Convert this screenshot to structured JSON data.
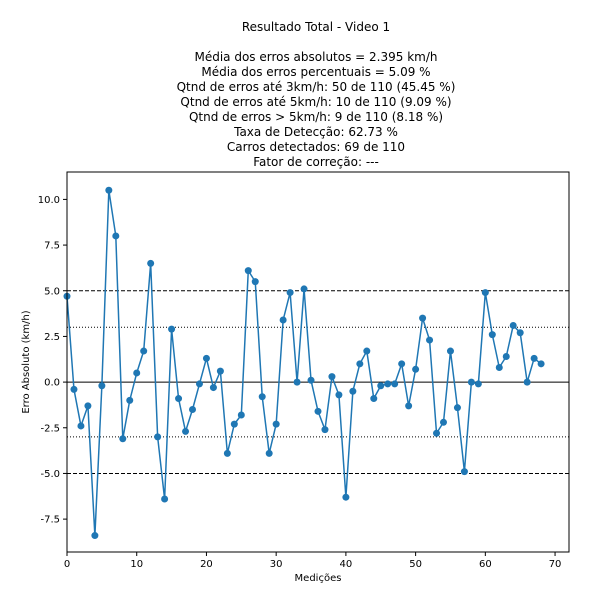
{
  "chart_data": {
    "type": "line",
    "title_lines": [
      "Resultado Total - Video 1",
      "",
      "Média dos erros absolutos =  2.395 km/h",
      "Média dos erros percentuais = 5.09 %",
      "Qtnd de erros até 3km/h: 50 de 110 (45.45 %)",
      "Qtnd de erros até 5km/h: 10 de 110 (9.09 %)",
      "Qtnd de erros > 5km/h: 9 de 110 (8.18 %)",
      "Taxa de Detecção: 62.73 %",
      "Carros detectados: 69 de 110",
      "Fator de correção: ---"
    ],
    "xlabel": "Medições",
    "ylabel": "Erro Absoluto (km/h)",
    "xlim": [
      0,
      72
    ],
    "ylim": [
      -9.3,
      11.5
    ],
    "xticks": [
      "0",
      "10",
      "20",
      "30",
      "40",
      "50",
      "60",
      "70"
    ],
    "yticks": [
      "-7.5",
      "-5.0",
      "-2.5",
      "0.0",
      "2.5",
      "5.0",
      "7.5",
      "10.0"
    ],
    "grid": false,
    "reference_lines": [
      {
        "y": 5,
        "style": "dashed"
      },
      {
        "y": 3,
        "style": "dotted"
      },
      {
        "y": 0,
        "style": "solid"
      },
      {
        "y": -3,
        "style": "dotted"
      },
      {
        "y": -5,
        "style": "dashed"
      }
    ],
    "series": [
      {
        "color": "#1f77b4",
        "x": [
          0,
          1,
          2,
          3,
          4,
          5,
          6,
          7,
          8,
          9,
          10,
          11,
          12,
          13,
          14,
          15,
          16,
          17,
          18,
          19,
          20,
          21,
          22,
          23,
          24,
          25,
          26,
          27,
          28,
          29,
          30,
          31,
          32,
          33,
          34,
          35,
          36,
          37,
          38,
          39,
          40,
          41,
          42,
          43,
          44,
          45,
          46,
          47,
          48,
          49,
          50,
          51,
          52,
          53,
          54,
          55,
          56,
          57,
          58,
          59,
          60,
          61,
          62,
          63,
          64,
          65,
          66,
          67,
          68
        ],
        "values": [
          4.7,
          -0.4,
          -2.4,
          -1.3,
          -8.4,
          -0.2,
          10.5,
          8.0,
          -3.1,
          -1.0,
          0.5,
          1.7,
          6.5,
          -3.0,
          -6.4,
          2.9,
          -0.9,
          -2.7,
          -1.5,
          -0.1,
          1.3,
          -0.3,
          0.6,
          -3.9,
          -2.3,
          -1.8,
          6.1,
          5.5,
          -0.8,
          -3.9,
          -2.3,
          3.4,
          4.9,
          0.0,
          5.1,
          0.1,
          -1.6,
          -2.6,
          0.3,
          -0.7,
          -6.3,
          -0.5,
          1.0,
          1.7,
          -0.9,
          -0.2,
          -0.1,
          -0.1,
          1.0,
          -1.3,
          0.7,
          3.5,
          2.3,
          -2.8,
          -2.2,
          1.7,
          -1.4,
          -4.9,
          0.0,
          -0.1,
          4.9,
          2.6,
          0.8,
          1.4,
          3.1,
          2.7,
          0.0,
          1.3,
          1.0
        ]
      }
    ]
  }
}
